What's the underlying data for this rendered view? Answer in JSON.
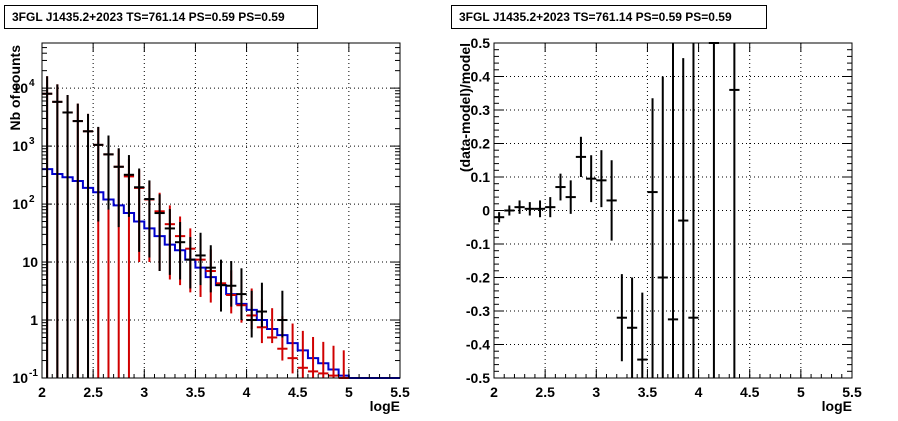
{
  "chart_data": [
    {
      "type": "histogram",
      "title": "3FGL J1435.2+2023 TS=761.14 PS=0.59 PS=0.59",
      "xlabel": "logE",
      "ylabel": "Nb of counts",
      "xlim": [
        2,
        5.5
      ],
      "ylim": [
        0.1,
        60000
      ],
      "yscale": "log",
      "grid": true,
      "x_ticks": [
        "2",
        "2.5",
        "3",
        "3.5",
        "4",
        "4.5",
        "5",
        "5.5"
      ],
      "y_ticks": [
        {
          "v": 0.1,
          "label": "10",
          "exp": "-1"
        },
        {
          "v": 1,
          "label": "1",
          "exp": ""
        },
        {
          "v": 10,
          "label": "10",
          "exp": ""
        },
        {
          "v": 100,
          "label": "10",
          "exp": "2"
        },
        {
          "v": 1000,
          "label": "10",
          "exp": "3"
        },
        {
          "v": 10000,
          "label": "10",
          "exp": "4"
        }
      ],
      "colors": {
        "model_total": "#d00000",
        "data": "#000000",
        "component": "#0000cc"
      },
      "bin_width": 0.1,
      "data_counts": {
        "x": [
          2.05,
          2.15,
          2.25,
          2.35,
          2.45,
          2.55,
          2.65,
          2.75,
          2.85,
          2.95,
          3.05,
          3.15,
          3.25,
          3.35,
          3.45,
          3.55,
          3.65,
          3.75,
          3.85,
          3.95,
          4.05,
          4.15,
          4.25,
          4.35,
          4.45,
          4.55,
          4.65,
          4.75,
          4.85,
          4.95
        ],
        "y": [
          8000,
          5800,
          3800,
          2700,
          1800,
          1050,
          720,
          440,
          320,
          195,
          122,
          70,
          38,
          22,
          11,
          13,
          8,
          4,
          3.9,
          2.8,
          1.0,
          1.4,
          0,
          1.0,
          0,
          0,
          0,
          0,
          0,
          0
        ],
        "err_lo": [
          8000,
          5800,
          3800,
          2700,
          1800,
          1000,
          640,
          400,
          260,
          180,
          110,
          63,
          32,
          17,
          7.5,
          9,
          5,
          2.6,
          2.2,
          1.8,
          0.5,
          0.65,
          0,
          0.5,
          0,
          0,
          0,
          0,
          0,
          0
        ],
        "err_hi": [
          8000,
          5800,
          3800,
          2700,
          1800,
          1100,
          800,
          480,
          380,
          215,
          134,
          78,
          44,
          27,
          16,
          19,
          11.5,
          7,
          6.5,
          5,
          2.2,
          3,
          0,
          2.2,
          0,
          0,
          0,
          0,
          0,
          0
        ]
      },
      "model_total": {
        "x": [
          2.05,
          2.15,
          2.25,
          2.35,
          2.45,
          2.55,
          2.65,
          2.75,
          2.85,
          2.95,
          3.05,
          3.15,
          3.25,
          3.35,
          3.45,
          3.55,
          3.65,
          3.75,
          3.85,
          3.95,
          4.05,
          4.15,
          4.25,
          4.35,
          4.45,
          4.55,
          4.65,
          4.75,
          4.85,
          4.95
        ],
        "y": [
          8000,
          5800,
          3800,
          2700,
          1800,
          1050,
          720,
          440,
          300,
          190,
          120,
          75,
          45,
          28,
          17,
          11,
          7,
          4.3,
          2.7,
          1.8,
          1.2,
          0.75,
          0.5,
          0.32,
          0.22,
          0.15,
          0.13,
          0.12,
          0.11,
          0.1
        ],
        "err_lo": [
          8000,
          5800,
          3800,
          2700,
          1800,
          1050,
          720,
          440,
          300,
          180,
          110,
          68,
          40,
          24,
          14,
          8.5,
          5,
          2.5,
          1.4,
          0.9,
          0.5,
          0.35,
          0.1,
          0.12,
          0.1,
          0.1,
          0.1,
          0.1,
          0.1,
          0.1
        ],
        "err_hi": [
          8000,
          5800,
          3800,
          2700,
          1800,
          1050,
          720,
          440,
          300,
          200,
          130,
          82,
          50,
          33,
          21,
          14,
          9.5,
          6.4,
          4.5,
          3.2,
          2.3,
          1.5,
          1.1,
          0.85,
          0.65,
          0.5,
          0.38,
          0.3,
          0.25,
          0.2
        ]
      },
      "model_component": {
        "x": [
          2.05,
          2.15,
          2.25,
          2.35,
          2.45,
          2.55,
          2.65,
          2.75,
          2.85,
          2.95,
          3.05,
          3.15,
          3.25,
          3.35,
          3.45,
          3.55,
          3.65,
          3.75,
          3.85,
          3.95,
          4.05,
          4.15,
          4.25,
          4.35,
          4.45,
          4.55,
          4.65,
          4.75,
          4.85,
          4.95,
          5.05,
          5.15,
          5.25,
          5.35,
          5.45
        ],
        "y": [
          400,
          330,
          290,
          250,
          190,
          160,
          120,
          95,
          70,
          50,
          38,
          28,
          20,
          16,
          11,
          8,
          5.5,
          4,
          2.8,
          1.9,
          1.5,
          1.0,
          0.7,
          0.55,
          0.4,
          0.3,
          0.22,
          0.18,
          0.14,
          0.11,
          0.1,
          0.1,
          0.1,
          0.1,
          0.1
        ]
      }
    },
    {
      "type": "scatter",
      "title": "3FGL J1435.2+2023 TS=761.14 PS=0.59 PS=0.59",
      "xlabel": "logE",
      "ylabel": "(data-model)/model",
      "xlim": [
        2,
        5.5
      ],
      "ylim": [
        -0.5,
        0.5
      ],
      "grid": true,
      "x_ticks": [
        "2",
        "2.5",
        "3",
        "3.5",
        "4",
        "4.5",
        "5",
        "5.5"
      ],
      "y_ticks": [
        "-0.5",
        "-0.4",
        "-0.3",
        "-0.2",
        "-0.1",
        "0",
        "0.1",
        "0.2",
        "0.3",
        "0.4",
        "0.5"
      ],
      "color": "#000000",
      "bin_width": 0.1,
      "residuals": {
        "x": [
          2.05,
          2.15,
          2.25,
          2.35,
          2.45,
          2.55,
          2.65,
          2.75,
          2.85,
          2.95,
          3.05,
          3.15,
          3.25,
          3.35,
          3.45,
          3.55,
          3.65,
          3.75,
          3.85,
          3.95,
          4.15,
          4.35
        ],
        "y": [
          -0.02,
          0.0,
          0.01,
          0.005,
          0.005,
          0.01,
          0.07,
          0.04,
          0.16,
          0.095,
          0.09,
          0.03,
          -0.32,
          -0.35,
          -0.445,
          0.055,
          -0.2,
          -0.325,
          -0.03,
          -0.32,
          0.5,
          0.36
        ],
        "err_lo": [
          0.015,
          0.015,
          0.02,
          0.02,
          0.025,
          0.03,
          0.04,
          0.05,
          0.06,
          0.07,
          0.08,
          0.12,
          0.13,
          0.15,
          0.06,
          0.6,
          0.3,
          0.175,
          0.47,
          0.18,
          1.0,
          0.86
        ],
        "err_hi": [
          0.015,
          0.015,
          0.02,
          0.02,
          0.025,
          0.03,
          0.04,
          0.05,
          0.06,
          0.07,
          0.09,
          0.12,
          0.13,
          0.15,
          0.2,
          0.28,
          0.6,
          0.825,
          0.485,
          0.82,
          0.0,
          0.14
        ]
      }
    }
  ]
}
